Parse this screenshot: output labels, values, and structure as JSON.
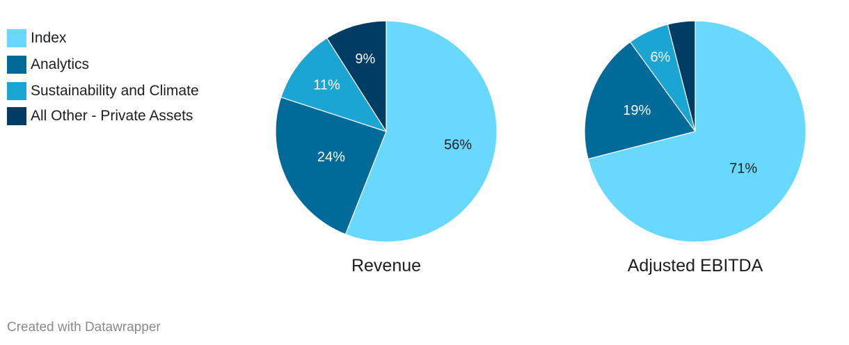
{
  "legend": {
    "items": [
      {
        "label": "Index",
        "color": "#68d8fc"
      },
      {
        "label": "Analytics",
        "color": "#006a98"
      },
      {
        "label": "Sustainability and Climate",
        "color": "#1aa5d2"
      },
      {
        "label": "All Other - Private Assets",
        "color": "#003c63"
      }
    ]
  },
  "chart_data": [
    {
      "type": "pie",
      "title": "Revenue",
      "categories": [
        "Index",
        "Analytics",
        "Sustainability and Climate",
        "All Other - Private Assets"
      ],
      "values": [
        56,
        24,
        11,
        9
      ],
      "labels": [
        "56%",
        "24%",
        "11%",
        "9%"
      ],
      "label_colors": [
        "#1d1d1d",
        "#ffffff",
        "#ffffff",
        "#ffffff"
      ],
      "colors": [
        "#68d8fc",
        "#006a98",
        "#1aa5d2",
        "#003c63"
      ],
      "legend": "top-left"
    },
    {
      "type": "pie",
      "title": "Adjusted EBITDA",
      "categories": [
        "Index",
        "Analytics",
        "Sustainability and Climate",
        "All Other - Private Assets"
      ],
      "values": [
        71,
        19,
        6,
        4
      ],
      "labels": [
        "71%",
        "19%",
        "6%",
        ""
      ],
      "label_colors": [
        "#1d1d1d",
        "#ffffff",
        "#ffffff",
        "#ffffff"
      ],
      "colors": [
        "#68d8fc",
        "#006a98",
        "#1aa5d2",
        "#003c63"
      ],
      "legend": "top-left"
    }
  ],
  "footer": {
    "credit": "Created with Datawrapper"
  }
}
